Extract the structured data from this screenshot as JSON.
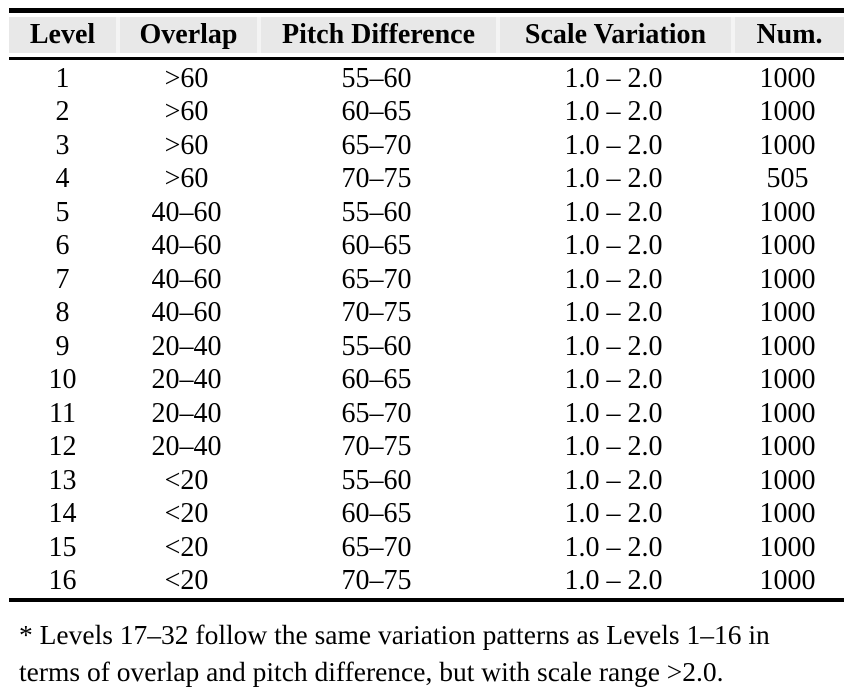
{
  "table": {
    "headers": [
      "Level",
      "Overlap",
      "Pitch Difference",
      "Scale Variation",
      "Num."
    ],
    "rows": [
      [
        "1",
        ">60",
        "55–60",
        "1.0 – 2.0",
        "1000"
      ],
      [
        "2",
        ">60",
        "60–65",
        "1.0 – 2.0",
        "1000"
      ],
      [
        "3",
        ">60",
        "65–70",
        "1.0 – 2.0",
        "1000"
      ],
      [
        "4",
        ">60",
        "70–75",
        "1.0 – 2.0",
        "505"
      ],
      [
        "5",
        "40–60",
        "55–60",
        "1.0 – 2.0",
        "1000"
      ],
      [
        "6",
        "40–60",
        "60–65",
        "1.0 – 2.0",
        "1000"
      ],
      [
        "7",
        "40–60",
        "65–70",
        "1.0 – 2.0",
        "1000"
      ],
      [
        "8",
        "40–60",
        "70–75",
        "1.0 – 2.0",
        "1000"
      ],
      [
        "9",
        "20–40",
        "55–60",
        "1.0 – 2.0",
        "1000"
      ],
      [
        "10",
        "20–40",
        "60–65",
        "1.0 – 2.0",
        "1000"
      ],
      [
        "11",
        "20–40",
        "65–70",
        "1.0 – 2.0",
        "1000"
      ],
      [
        "12",
        "20–40",
        "70–75",
        "1.0 – 2.0",
        "1000"
      ],
      [
        "13",
        "<20",
        "55–60",
        "1.0 – 2.0",
        "1000"
      ],
      [
        "14",
        "<20",
        "60–65",
        "1.0 – 2.0",
        "1000"
      ],
      [
        "15",
        "<20",
        "65–70",
        "1.0 – 2.0",
        "1000"
      ],
      [
        "16",
        "<20",
        "70–75",
        "1.0 – 2.0",
        "1000"
      ]
    ]
  },
  "footnote": {
    "lines": [
      "* Levels 17–32 follow the same variation patterns as Levels 1–16 in",
      "terms of overlap and pitch difference, but with scale range >2.0."
    ]
  },
  "colors": {
    "header_bg": "#e8e8e8",
    "rule": "#000000",
    "background": "#ffffff",
    "text": "#000000"
  }
}
